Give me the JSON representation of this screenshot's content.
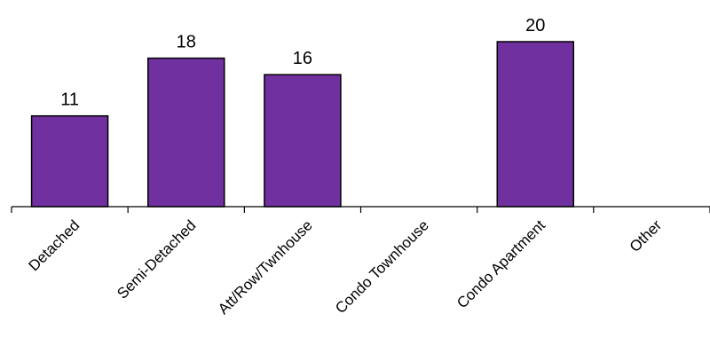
{
  "chart_data": {
    "type": "bar",
    "categories": [
      "Detached",
      "Semi-Detached",
      "Att/Row/Twnhouse",
      "Condo Townhouse",
      "Condo Apartment",
      "Other"
    ],
    "values": [
      11,
      18,
      16,
      0,
      20,
      0
    ],
    "value_labels": [
      "11",
      "18",
      "16",
      "",
      "20",
      ""
    ],
    "ylim": [
      0,
      20
    ],
    "grid": false,
    "legend": "none",
    "colors": {
      "bar": "#7030a0",
      "axis": "#000000"
    }
  }
}
